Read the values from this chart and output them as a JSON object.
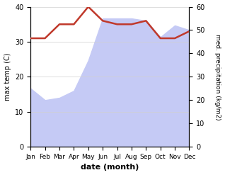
{
  "months": [
    "Jan",
    "Feb",
    "Mar",
    "Apr",
    "May",
    "Jun",
    "Jul",
    "Aug",
    "Sep",
    "Oct",
    "Nov",
    "Dec"
  ],
  "temp_max": [
    31,
    31,
    35,
    35,
    40,
    36,
    35,
    35,
    36,
    31,
    31,
    33
  ],
  "precip": [
    25,
    20,
    21,
    24,
    37,
    55,
    55,
    55,
    54,
    47,
    52,
    50
  ],
  "temp_color": "#c0392b",
  "precip_fill_color": "#c5caf5",
  "temp_ylim": [
    0,
    40
  ],
  "precip_ylim": [
    0,
    60
  ],
  "xlabel": "date (month)",
  "ylabel_left": "max temp (C)",
  "ylabel_right": "med. precipitation (kg/m2)",
  "background_color": "#ffffff",
  "grid_color": "#d0d0d0",
  "left_yticks": [
    0,
    10,
    20,
    30,
    40
  ],
  "right_yticks": [
    0,
    10,
    20,
    30,
    40,
    50,
    60
  ]
}
